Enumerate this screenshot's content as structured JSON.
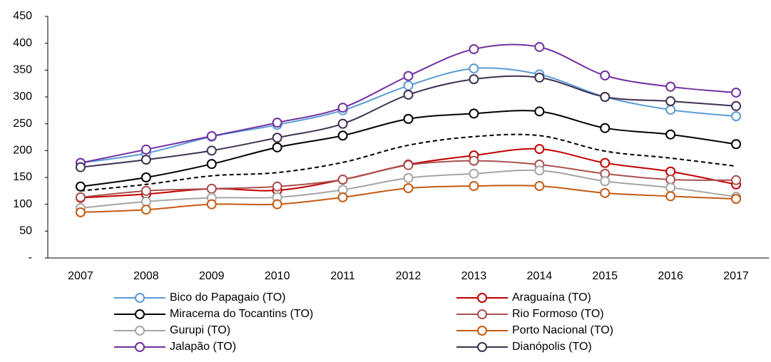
{
  "chart_data": {
    "type": "line",
    "categories": [
      "2007",
      "2008",
      "2009",
      "2010",
      "2011",
      "2012",
      "2013",
      "2014",
      "2015",
      "2016",
      "2017"
    ],
    "ylim": [
      0,
      450
    ],
    "yticks": [
      {
        "value": 0,
        "label": "-"
      },
      50,
      100,
      150,
      200,
      250,
      300,
      350,
      400,
      450
    ],
    "grid": false,
    "smooth": true,
    "legend": "bottom",
    "series": [
      {
        "name": "Bico do Papagaio (TO)",
        "color": "#5b9bd5",
        "values": [
          177,
          195,
          226,
          248,
          275,
          321,
          353,
          342,
          300,
          276,
          264
        ]
      },
      {
        "name": "Araguaína (TO)",
        "color": "#c00000",
        "values": [
          112,
          119,
          129,
          126,
          146,
          174,
          191,
          203,
          177,
          161,
          137
        ]
      },
      {
        "name": "Miracema do Tocantins (TO)",
        "color": "#000000",
        "values": [
          133,
          150,
          175,
          206,
          228,
          259,
          269,
          273,
          242,
          230,
          212
        ]
      },
      {
        "name": "Rio Formoso (TO)",
        "color": "#a9504e",
        "values": [
          113,
          125,
          129,
          133,
          146,
          173,
          181,
          174,
          157,
          146,
          145
        ]
      },
      {
        "name": "Gurupi (TO)",
        "color": "#a5a5a5",
        "values": [
          93,
          105,
          112,
          113,
          127,
          149,
          157,
          163,
          143,
          131,
          114
        ]
      },
      {
        "name": "Porto Nacional (TO)",
        "color": "#c55a11",
        "values": [
          85,
          90,
          100,
          100,
          113,
          130,
          134,
          134,
          121,
          115,
          110
        ]
      },
      {
        "name": "Jalapão (TO)",
        "color": "#7030a0",
        "values": [
          177,
          202,
          227,
          252,
          280,
          339,
          389,
          393,
          340,
          319,
          308
        ]
      },
      {
        "name": "Dianópolis (TO)",
        "color": "#403151",
        "values": [
          169,
          183,
          200,
          224,
          250,
          304,
          333,
          336,
          300,
          292,
          283
        ]
      },
      {
        "color": "#000000",
        "dash": true,
        "markers": false,
        "values": [
          125,
          137,
          153,
          159,
          178,
          210,
          226,
          228,
          199,
          186,
          171
        ]
      }
    ]
  }
}
